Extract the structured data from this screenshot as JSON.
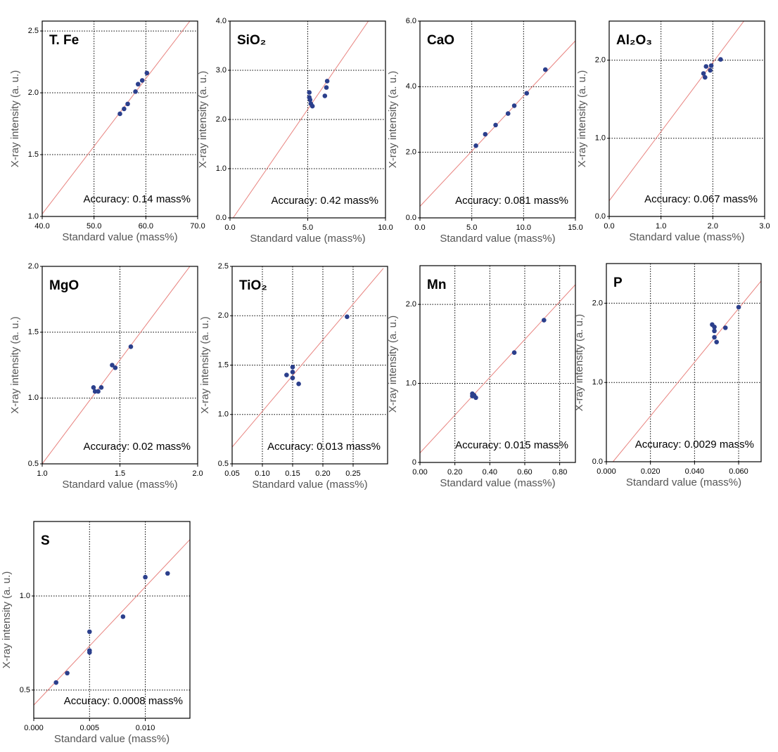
{
  "chart_data": [
    {
      "type": "scatter",
      "title": "T. Fe",
      "annotation": "Accuracy: 0.14 mass%",
      "xlabel": "Standard value (mass%)",
      "ylabel": "X-ray intensity (a. u.)",
      "color": "#2b3f8c",
      "grid": true,
      "x": [
        55,
        55.8,
        56.5,
        58,
        58.5,
        59.3,
        60.2
      ],
      "y": [
        1.83,
        1.87,
        1.91,
        2.01,
        2.07,
        2.1,
        2.16
      ],
      "fit": {
        "color": "#e8837f",
        "x": [
          40,
          68.5
        ],
        "y": [
          1.02,
          2.58
        ]
      },
      "xlim": [
        40,
        70
      ],
      "ylim": [
        1.0,
        2.58
      ],
      "xticks": [
        {
          "value": 40,
          "label": "40.0"
        },
        {
          "value": 50,
          "label": "50.0"
        },
        {
          "value": 60,
          "label": "60.0"
        },
        {
          "value": 70,
          "label": "70.0"
        }
      ],
      "yticks": [
        {
          "value": 1,
          "label": "1.0"
        },
        1.5,
        {
          "value": 2,
          "label": "2.0"
        },
        2.5
      ]
    },
    {
      "type": "scatter",
      "title": "SiO₂",
      "annotation": "Accuracy: 0.42 mass%",
      "xlabel": "Standard value (mass%)",
      "ylabel": "X-ray intensity (a. u.)",
      "color": "#2b3f8c",
      "grid": true,
      "x": [
        5.1,
        5.1,
        5.15,
        5.2,
        5.3,
        6.1,
        6.2,
        6.25
      ],
      "y": [
        2.55,
        2.45,
        2.4,
        2.32,
        2.27,
        2.48,
        2.65,
        2.78
      ],
      "fit": {
        "color": "#e8837f",
        "x": [
          0.2,
          8.9
        ],
        "y": [
          0,
          4.0
        ]
      },
      "xlim": [
        0,
        10
      ],
      "ylim": [
        0,
        4
      ],
      "xticks": [
        {
          "value": 0,
          "label": "0.0"
        },
        {
          "value": 5,
          "label": "5.0"
        },
        {
          "value": 10,
          "label": "10.0"
        }
      ],
      "yticks": [
        {
          "value": 0,
          "label": "0.0"
        },
        {
          "value": 1,
          "label": "1.0"
        },
        {
          "value": 2,
          "label": "2.0"
        },
        {
          "value": 3,
          "label": "3.0"
        },
        {
          "value": 4,
          "label": "4.0"
        }
      ]
    },
    {
      "type": "scatter",
      "title": "CaO",
      "annotation": "Accuracy: 0.081 mass%",
      "xlabel": "Standard value (mass%)",
      "ylabel": "X-ray intensity (a. u.)",
      "color": "#2b3f8c",
      "grid": true,
      "x": [
        5.4,
        6.3,
        7.3,
        8.5,
        9.1,
        10.3,
        12.1
      ],
      "y": [
        2.2,
        2.55,
        2.83,
        3.18,
        3.42,
        3.8,
        4.52
      ],
      "fit": {
        "color": "#e8837f",
        "x": [
          0,
          15
        ],
        "y": [
          0.35,
          5.4
        ]
      },
      "xlim": [
        0,
        15
      ],
      "ylim": [
        0,
        6
      ],
      "xticks": [
        {
          "value": 0,
          "label": "0.0"
        },
        {
          "value": 5,
          "label": "5.0"
        },
        {
          "value": 10,
          "label": "10.0"
        },
        {
          "value": 15,
          "label": "15.0"
        }
      ],
      "yticks": [
        {
          "value": 0,
          "label": "0.0"
        },
        {
          "value": 2,
          "label": "2.0"
        },
        {
          "value": 4,
          "label": "4.0"
        },
        {
          "value": 6,
          "label": "6.0"
        }
      ]
    },
    {
      "type": "scatter",
      "title": "Al₂O₃",
      "annotation": "Accuracy: 0.067 mass%",
      "xlabel": "Standard value (mass%)",
      "ylabel": "X-ray intensity (a. u.)",
      "color": "#2b3f8c",
      "grid": true,
      "x": [
        1.82,
        1.85,
        1.87,
        1.95,
        1.97,
        2.15
      ],
      "y": [
        1.83,
        1.78,
        1.92,
        1.87,
        1.93,
        2.01
      ],
      "fit": {
        "color": "#e8837f",
        "x": [
          0,
          2.6
        ],
        "y": [
          0.2,
          2.5
        ]
      },
      "xlim": [
        0,
        3
      ],
      "ylim": [
        0,
        2.5
      ],
      "xticks": [
        {
          "value": 0,
          "label": "0.0"
        },
        {
          "value": 1,
          "label": "1.0"
        },
        {
          "value": 2,
          "label": "2.0"
        },
        {
          "value": 3,
          "label": "3.0"
        }
      ],
      "yticks": [
        {
          "value": 0,
          "label": "0.0"
        },
        {
          "value": 1,
          "label": "1.0"
        },
        {
          "value": 2,
          "label": "2.0"
        }
      ]
    },
    {
      "type": "scatter",
      "title": "MgO",
      "annotation": "Accuracy: 0.02 mass%",
      "xlabel": "Standard value (mass%)",
      "ylabel": "X-ray intensity (a. u.)",
      "color": "#2b3f8c",
      "grid": true,
      "x": [
        1.33,
        1.34,
        1.36,
        1.38,
        1.45,
        1.47,
        1.57
      ],
      "y": [
        1.08,
        1.05,
        1.05,
        1.08,
        1.25,
        1.23,
        1.39
      ],
      "fit": {
        "color": "#e8837f",
        "x": [
          1.0,
          1.95
        ],
        "y": [
          0.5,
          2.0
        ]
      },
      "xlim": [
        1,
        2
      ],
      "ylim": [
        0.5,
        2
      ],
      "xticks": [
        {
          "value": 1,
          "label": "1.0"
        },
        1.5,
        {
          "value": 2,
          "label": "2.0"
        }
      ],
      "yticks": [
        0.5,
        {
          "value": 1,
          "label": "1.0"
        },
        1.5,
        {
          "value": 2,
          "label": "2.0"
        }
      ]
    },
    {
      "type": "scatter",
      "title": "TiO₂",
      "annotation": "Accuracy: 0.013 mass%",
      "xlabel": "Standard value (mass%)",
      "ylabel": "X-ray intensity (a. u.)",
      "color": "#2b3f8c",
      "grid": true,
      "x": [
        0.14,
        0.15,
        0.15,
        0.15,
        0.16,
        0.24
      ],
      "y": [
        1.4,
        1.48,
        1.43,
        1.37,
        1.31,
        1.99
      ],
      "fit": {
        "color": "#e8837f",
        "x": [
          0.05,
          0.3
        ],
        "y": [
          0.67,
          2.48
        ]
      },
      "xlim": [
        0.05,
        0.307
      ],
      "ylim": [
        0.5,
        2.5
      ],
      "xticks": [
        0.05,
        {
          "value": 0.1,
          "label": "0.10"
        },
        0.15,
        {
          "value": 0.2,
          "label": "0.20"
        },
        0.25
      ],
      "yticks": [
        0.5,
        {
          "value": 1,
          "label": "1.0"
        },
        1.5,
        {
          "value": 2,
          "label": "2.0"
        },
        2.5
      ]
    },
    {
      "type": "scatter",
      "title": "Mn",
      "annotation": "Accuracy: 0.015 mass%",
      "xlabel": "Standard value (mass%)",
      "ylabel": "X-ray intensity (a. u.)",
      "color": "#2b3f8c",
      "grid": true,
      "x": [
        0.3,
        0.3,
        0.31,
        0.32,
        0.54,
        0.71
      ],
      "y": [
        0.87,
        0.84,
        0.85,
        0.82,
        1.39,
        1.8
      ],
      "fit": {
        "color": "#e8837f",
        "x": [
          0,
          0.89
        ],
        "y": [
          0.12,
          2.25
        ]
      },
      "xlim": [
        0,
        0.89
      ],
      "ylim": [
        0,
        2.49
      ],
      "xticks": [
        {
          "value": 0,
          "label": "0.00"
        },
        {
          "value": 0.2,
          "label": "0.20"
        },
        {
          "value": 0.4,
          "label": "0.40"
        },
        {
          "value": 0.6,
          "label": "0.60"
        },
        {
          "value": 0.8,
          "label": "0.80"
        }
      ],
      "yticks": [
        0,
        {
          "value": 1,
          "label": "1.0"
        },
        {
          "value": 2,
          "label": "2.0"
        }
      ]
    },
    {
      "type": "scatter",
      "title": "P",
      "annotation": "Accuracy: 0.0029 mass%",
      "xlabel": "Standard value (mass%)",
      "ylabel": "X-ray intensity (a. u.)",
      "color": "#2b3f8c",
      "grid": true,
      "x": [
        0.048,
        0.049,
        0.049,
        0.049,
        0.05,
        0.054,
        0.06
      ],
      "y": [
        1.73,
        1.7,
        1.65,
        1.57,
        1.51,
        1.69,
        1.95
      ],
      "fit": {
        "color": "#e8837f",
        "x": [
          0.003,
          0.0702
        ],
        "y": [
          0,
          2.28
        ]
      },
      "xlim": [
        0,
        0.0702
      ],
      "ylim": [
        0,
        2.5
      ],
      "xticks": [
        {
          "value": 0,
          "label": "0.000"
        },
        {
          "value": 0.02,
          "label": "0.020"
        },
        {
          "value": 0.04,
          "label": "0.040"
        },
        {
          "value": 0.06,
          "label": "0.060"
        }
      ],
      "yticks": [
        {
          "value": 0,
          "label": "0.0"
        },
        {
          "value": 1,
          "label": "1.0"
        },
        {
          "value": 2,
          "label": "2.0"
        }
      ]
    },
    {
      "type": "scatter",
      "title": "S",
      "annotation": "Accuracy: 0.0008 mass%",
      "xlabel": "Standard value (mass%)",
      "ylabel": "X-ray intensity (a. u.)",
      "color": "#2b3f8c",
      "grid": true,
      "x": [
        0.002,
        0.003,
        0.005,
        0.005,
        0.005,
        0.008,
        0.01,
        0.012
      ],
      "y": [
        0.54,
        0.59,
        0.81,
        0.71,
        0.7,
        0.89,
        1.1,
        1.12
      ],
      "fit": {
        "color": "#e8837f",
        "x": [
          0,
          0.014
        ],
        "y": [
          0.42,
          1.3
        ]
      },
      "xlim": [
        0,
        0.014
      ],
      "ylim": [
        0.35,
        1.396
      ],
      "xticks": [
        {
          "value": 0,
          "label": "0.000"
        },
        0.005,
        {
          "value": 0.01,
          "label": "0.010"
        }
      ],
      "yticks": [
        0.5,
        {
          "value": 1,
          "label": "1.0"
        }
      ]
    }
  ]
}
